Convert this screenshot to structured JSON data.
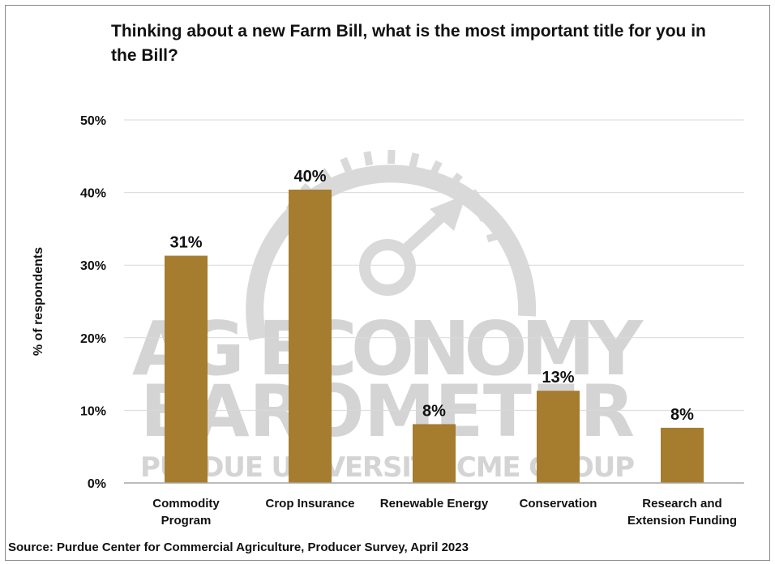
{
  "source": "Source: Purdue Center for Commercial Agriculture, Producer Survey, April 2023",
  "watermark": {
    "line1": "AG ECONOMY",
    "line2": "BAROMETER",
    "line3": "PURDUE UNIVERSITY  CME GROUP"
  },
  "chart_data": {
    "type": "bar",
    "title": "Thinking about a new Farm Bill, what is the most important title for you in the Bill?",
    "ylabel": "% of respondents",
    "xlabel": "",
    "ylim": [
      0,
      50
    ],
    "yticks": [
      0,
      10,
      20,
      30,
      40,
      50
    ],
    "ytick_labels": [
      "0%",
      "10%",
      "20%",
      "30%",
      "40%",
      "50%"
    ],
    "grid": true,
    "bar_color": "#A67C2E",
    "categories": [
      [
        "Commodity",
        "Program"
      ],
      [
        "Crop Insurance"
      ],
      [
        "Renewable Energy"
      ],
      [
        "Conservation"
      ],
      [
        "Research and",
        "Extension Funding"
      ]
    ],
    "values": [
      31.3,
      40.4,
      8.1,
      12.7,
      7.6
    ],
    "data_labels": [
      "31%",
      "40%",
      "8%",
      "13%",
      "8%"
    ]
  }
}
